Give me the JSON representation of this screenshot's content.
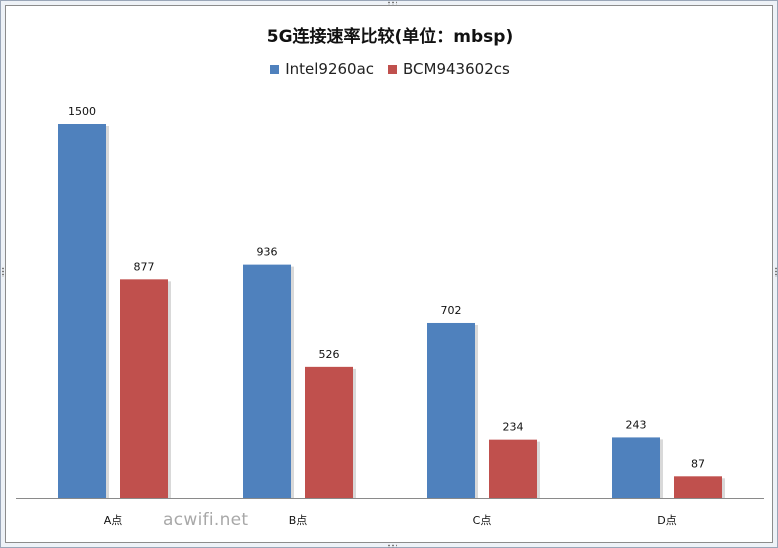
{
  "chart_data": {
    "type": "bar",
    "title": "5G连接速率比较(单位：mbsp)",
    "categories": [
      "A点",
      "B点",
      "C点",
      "D点"
    ],
    "series": [
      {
        "name": "Intel9260ac",
        "color": "#4f81bd",
        "values": [
          1500,
          936,
          702,
          243
        ]
      },
      {
        "name": "BCM943602cs",
        "color": "#c0504d",
        "values": [
          877,
          526,
          234,
          87
        ]
      }
    ],
    "ylim": [
      0,
      1500
    ],
    "grid": false,
    "legend_position": "top",
    "data_labels": true
  },
  "watermark": "acwifi.net"
}
